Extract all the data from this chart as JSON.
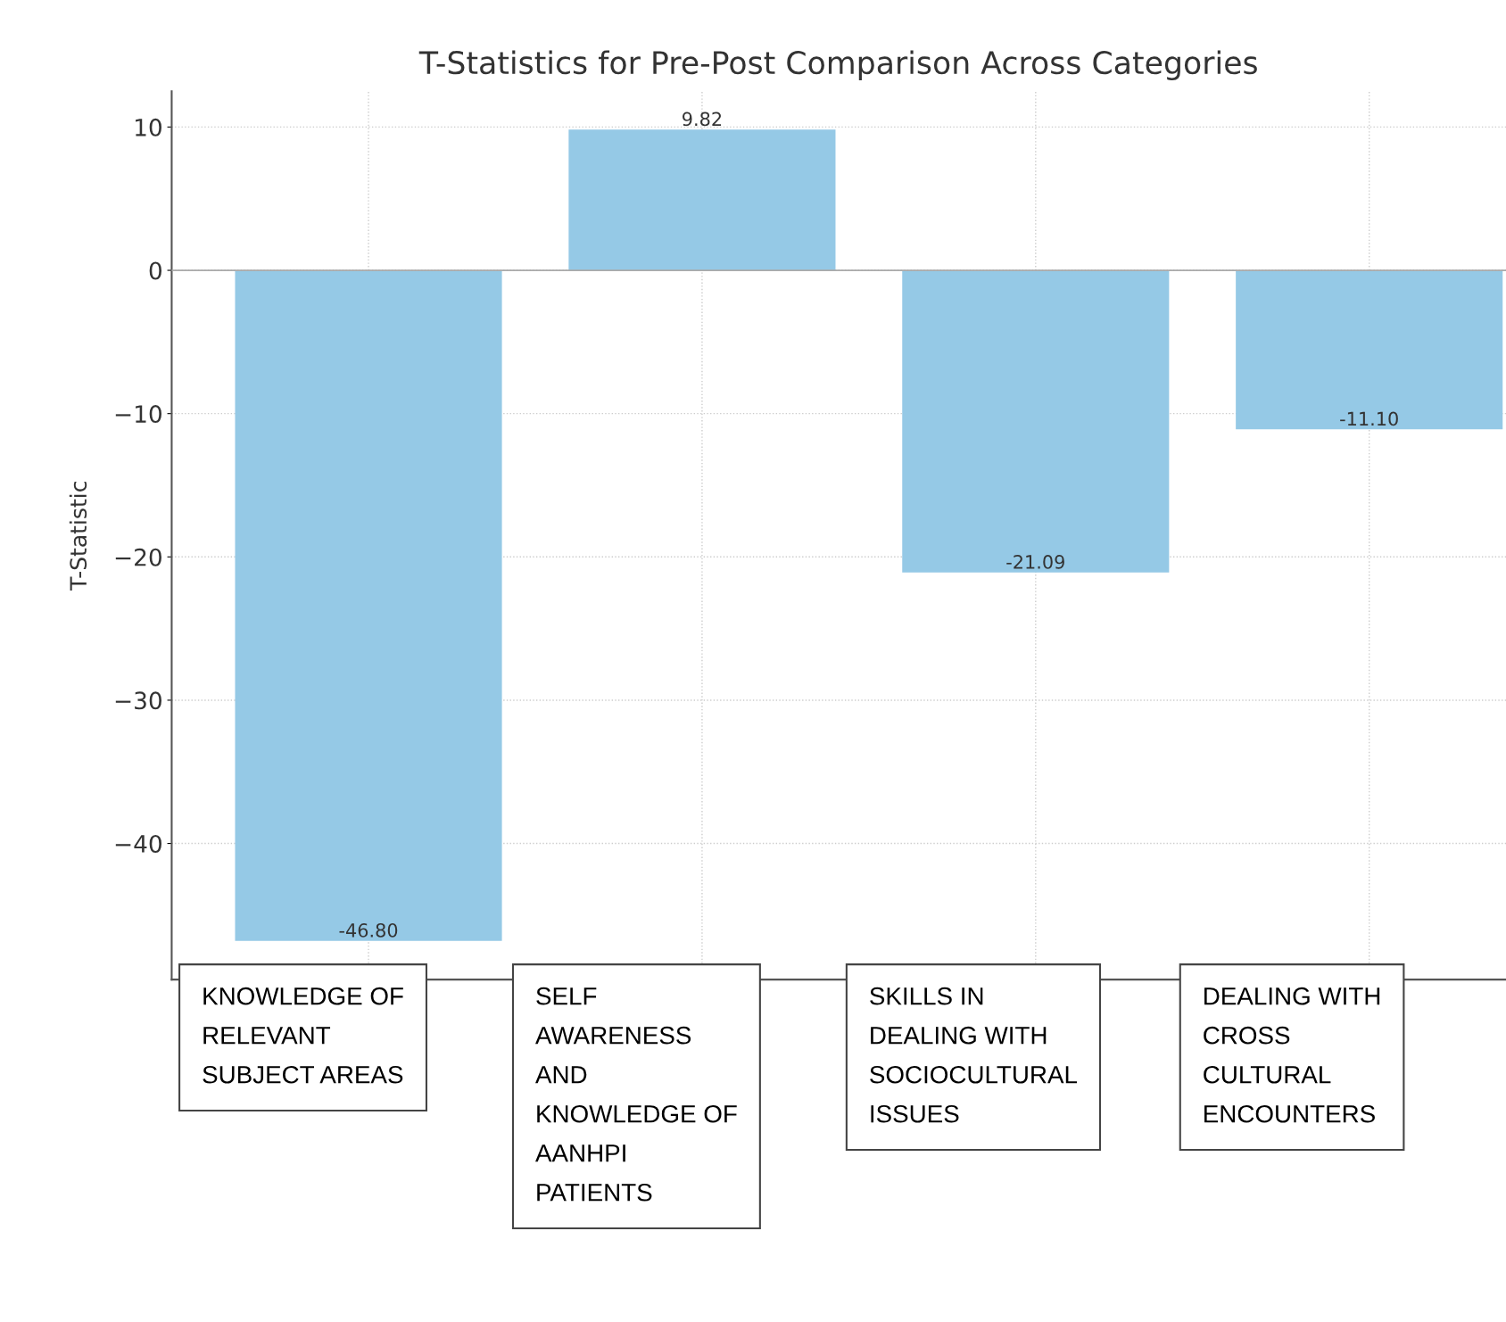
{
  "chart_data": {
    "type": "bar",
    "title": "T-Statistics for Pre-Post Comparison Across Categories",
    "ylabel": "T-Statistic",
    "categories": [
      "KNOWLEDGE OF\nRELEVANT\nSUBJECT AREAS",
      "SELF\nAWARENESS\nAND\nKNOWLEDGE OF\nAANHPI\nPATIENTS",
      "SKILLS IN\nDEALING WITH\nSOCIOCULTURAL\nISSUES",
      "DEALING WITH\nCROSS\nCULTURAL\nENCOUNTERS"
    ],
    "values": [
      -46.8,
      9.82,
      -21.09,
      -11.1
    ],
    "value_labels": [
      "-46.80",
      "9.82",
      "-21.09",
      "-11.10"
    ],
    "color": "#95c9e6",
    "ylim": [
      -49.5,
      12.5
    ],
    "yticks": [
      10,
      0,
      {
        "value": -10,
        "label": "−10"
      },
      {
        "value": -20,
        "label": "−20"
      },
      {
        "value": -30,
        "label": "−30"
      },
      {
        "value": -40,
        "label": "−40"
      }
    ],
    "ref_lines": [
      {
        "axis": "y",
        "value": 0,
        "color": "#aaaaaa"
      }
    ],
    "grid": true
  }
}
